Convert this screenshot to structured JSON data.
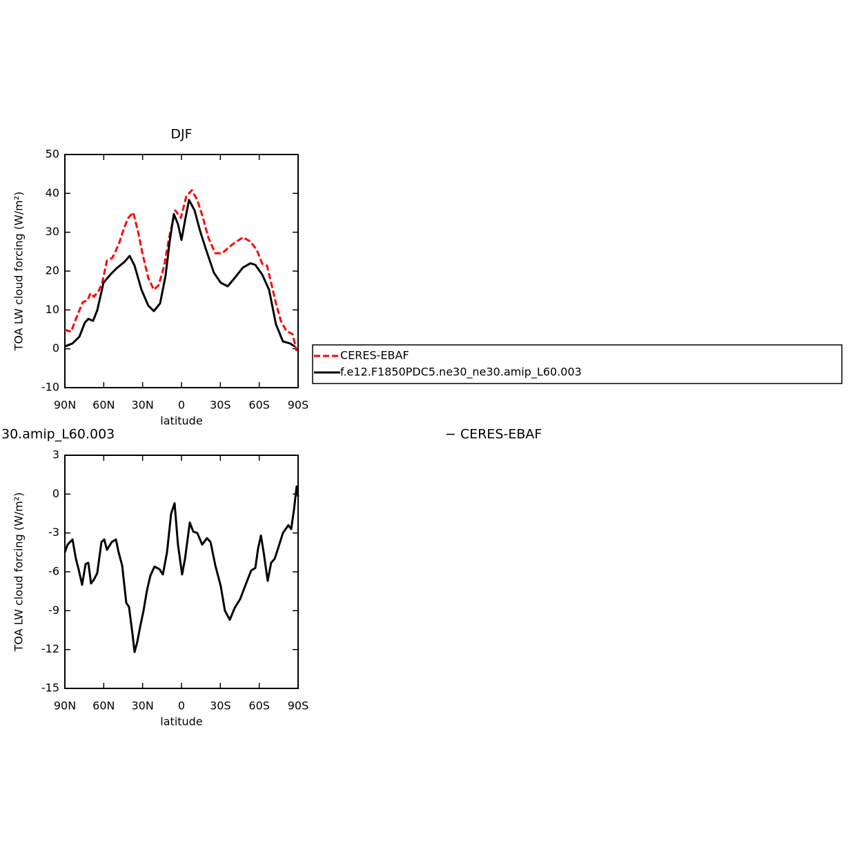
{
  "chart_data": [
    {
      "type": "line",
      "title": "DJF",
      "xlabel": "latitude",
      "ylabel": "TOA LW cloud forcing (W/m²)",
      "xlim": [
        90,
        -90
      ],
      "xticks": [
        {
          "value": 90,
          "label": "90N"
        },
        {
          "value": 60,
          "label": "60N"
        },
        {
          "value": 30,
          "label": "30N"
        },
        0,
        {
          "value": -30,
          "label": "30S"
        },
        {
          "value": -60,
          "label": "60S"
        },
        {
          "value": -90,
          "label": "90S"
        }
      ],
      "ylim": [
        -10,
        50
      ],
      "yticks": [
        -10,
        0,
        10,
        20,
        30,
        40,
        50
      ],
      "legend": "right",
      "series": [
        {
          "name": "CERES-EBAF",
          "color": "#ff0000",
          "line_style": "dashed",
          "x": [
            90,
            85.2,
            81.5,
            76.2,
            72.4,
            70.3,
            67.6,
            63.9,
            61.2,
            57.5,
            53.3,
            48.5,
            44.2,
            41,
            37.3,
            33.6,
            29.8,
            25.6,
            21.3,
            17.6,
            13.3,
            9.6,
            4.8,
            0.5,
            -3.7,
            -8,
            -12.2,
            -16.5,
            -20.8,
            -26.1,
            -31.4,
            -38.3,
            -47.4,
            -53.2,
            -58,
            -62.3,
            -66,
            -69.2,
            -72.9,
            -76.7,
            -80.9,
            -85.7,
            -88.9
          ],
          "values": [
            4.9,
            4.4,
            7.7,
            12,
            12.5,
            14.3,
            13.4,
            14.9,
            17,
            22.7,
            23.4,
            26.8,
            31.2,
            33.7,
            35.1,
            30.3,
            24.1,
            18.2,
            15.2,
            16.4,
            21.4,
            28.5,
            35.6,
            33.7,
            39.2,
            40.8,
            38.3,
            33.8,
            28.5,
            24.6,
            24.6,
            26.6,
            28.7,
            27.6,
            25.5,
            21.9,
            21.4,
            17,
            11.7,
            7.2,
            4.6,
            3.8,
            -0.6
          ]
        },
        {
          "name": "f.e12.F1850PDC5.ne30_ne30.amip_L60.003",
          "color": "#000000",
          "line_style": "solid",
          "x": [
            90,
            84.1,
            78.8,
            74.6,
            71.9,
            68.2,
            65,
            60.2,
            54.9,
            49.5,
            44.2,
            40,
            36.2,
            30.9,
            25.6,
            21.3,
            16.5,
            12.3,
            9.1,
            5.9,
            2.7,
            0,
            -2.7,
            -5.8,
            -10.1,
            -14.4,
            -18.6,
            -25,
            -30.3,
            -35.7,
            -41,
            -47.4,
            -53.2,
            -57,
            -62.3,
            -67.6,
            -72.9,
            -78.3,
            -83.6,
            -87.8
          ],
          "values": [
            0.6,
            1.4,
            3.1,
            6.7,
            7.7,
            7.2,
            9.9,
            17,
            19.1,
            20.9,
            22.3,
            23.9,
            21.4,
            15.2,
            11.1,
            9.7,
            11.7,
            18.8,
            27.6,
            34.7,
            32.1,
            28,
            33,
            38.3,
            35.6,
            30.3,
            25.9,
            19.6,
            17,
            16.1,
            18.2,
            20.9,
            22,
            21.6,
            19.1,
            15.2,
            6.3,
            1.9,
            1.4,
            0.5
          ]
        }
      ]
    },
    {
      "type": "line",
      "title_parts": [
        "30.amip_L60.003",
        "− CERES-EBAF"
      ],
      "xlabel": "latitude",
      "ylabel": "TOA LW cloud forcing (W/m²)",
      "xlim": [
        90,
        -90
      ],
      "xticks": [
        {
          "value": 90,
          "label": "90N"
        },
        {
          "value": 60,
          "label": "60N"
        },
        {
          "value": 30,
          "label": "30N"
        },
        0,
        {
          "value": -30,
          "label": "30S"
        },
        {
          "value": -60,
          "label": "60S"
        },
        {
          "value": -90,
          "label": "90S"
        }
      ],
      "ylim": [
        -15,
        3
      ],
      "yticks": [
        -15,
        -12,
        -9,
        -6,
        -3,
        0,
        3
      ],
      "series": [
        {
          "color": "#000000",
          "line_style": "solid",
          "x": [
            90,
            87.9,
            84.1,
            81.5,
            79.4,
            76.7,
            74,
            71.9,
            69.8,
            67.6,
            65,
            61.8,
            59.6,
            57.5,
            53.8,
            50.6,
            48.5,
            45.8,
            42.6,
            40.5,
            37.8,
            36.2,
            34.1,
            32,
            29.3,
            26.6,
            24,
            20.8,
            17,
            14.4,
            11.2,
            8,
            5.3,
            2.7,
            -0.5,
            -2.7,
            -6.4,
            -9.1,
            -12.2,
            -16,
            -19.7,
            -22.4,
            -26.1,
            -30.3,
            -33.5,
            -37.3,
            -41,
            -45.3,
            -49.5,
            -53.8,
            -57,
            -59.1,
            -61.3,
            -63.4,
            -66.5,
            -69.2,
            -71.9,
            -74.5,
            -78.3,
            -82.5,
            -84.7,
            -86.8,
            -88.9,
            -90
          ],
          "values": [
            -4.5,
            -3.9,
            -3.5,
            -5,
            -5.8,
            -7,
            -5.4,
            -5.3,
            -6.9,
            -6.6,
            -6.1,
            -3.7,
            -3.5,
            -4.3,
            -3.7,
            -3.5,
            -4.5,
            -5.5,
            -8.4,
            -8.7,
            -10.8,
            -12.2,
            -11.4,
            -10.3,
            -9,
            -7.4,
            -6.3,
            -5.6,
            -5.8,
            -6.2,
            -4.5,
            -1.5,
            -0.7,
            -3.9,
            -6.2,
            -5,
            -2.2,
            -2.9,
            -3,
            -3.9,
            -3.4,
            -3.7,
            -5.5,
            -7.1,
            -9,
            -9.7,
            -8.8,
            -8.1,
            -7,
            -5.9,
            -5.7,
            -4.2,
            -3.2,
            -4.5,
            -6.7,
            -5.3,
            -5,
            -4.2,
            -3,
            -2.4,
            -2.7,
            -1.2,
            0.6,
            -0.2
          ]
        }
      ]
    }
  ]
}
